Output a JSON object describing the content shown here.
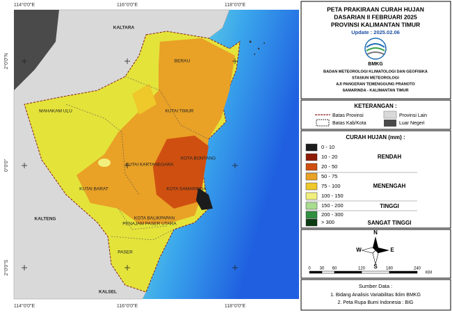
{
  "map": {
    "coordinates": {
      "top": [
        "114°0'0\"E",
        "116°0'0\"E",
        "118°0'0\"E"
      ],
      "bottom": [
        "114°0'0\"E",
        "116°0'0\"E",
        "118°0'0\"E"
      ],
      "left": [
        "2°0'0\"N",
        "0°0'0\"",
        "2°0'0\"S"
      ]
    },
    "regions": [
      "KALTARA",
      "BERAU",
      "KUTAI TIMUR",
      "MAHAKAM ULU",
      "KOTA BONTANG",
      "KUTAI KARTANEGARA",
      "KUTAI BARAT",
      "KOTA SAMARINDA",
      "KALTENG",
      "KOTA BALIKPAPAN",
      "PENAJAM PASER UTARA",
      "PASER",
      "KALSEL"
    ]
  },
  "header": {
    "title": [
      "PETA PRAKIRAAN CURAH HUJAN",
      "DASARIAN II FEBRUARI 2025",
      "PROVINSI KALIMANTAN TIMUR"
    ],
    "update": "Update : 2025.02.06",
    "logo": "BMKG",
    "agency": [
      "BADAN METEOROLOGI KLIMATOLOGI DAN GEOFISIKA",
      "STASIUN METEOROLOGI",
      "AJI PANGERAN TEMENGGUNG PRANOTO",
      "SAMARINDA - KALIMANTAN TIMUR"
    ]
  },
  "keterangan": {
    "title": "KETERANGAN :",
    "items": [
      "Batas Provinsi",
      "Provinsi Lain",
      "Batas Kab/Kota",
      "Luar Negeri"
    ]
  },
  "curah_hujan": {
    "title": "CURAH HUJAN (mm) :",
    "classes": [
      {
        "label": "0 - 10",
        "color": "#1c1c1c"
      },
      {
        "label": "10 - 20",
        "color": "#8e1b06"
      },
      {
        "label": "20 - 50",
        "color": "#cf4f10"
      },
      {
        "label": "50 - 75",
        "color": "#e9a126"
      },
      {
        "label": "75 - 100",
        "color": "#efc82a"
      },
      {
        "label": "100 - 150",
        "color": "#f1f07e"
      },
      {
        "label": "150 - 200",
        "color": "#a9dd8f"
      },
      {
        "label": "200 - 300",
        "color": "#2f9140"
      },
      {
        "label": "> 300",
        "color": "#0b3b12"
      }
    ],
    "groups": [
      "RENDAH",
      "MENENGAH",
      "TINGGI",
      "SANGAT TINGGI"
    ]
  },
  "compass": [
    "N",
    "W",
    "E",
    "S"
  ],
  "scale": {
    "labels": [
      "0",
      "30",
      "60",
      "120",
      "180",
      "240"
    ],
    "unit": "KM"
  },
  "sources": {
    "title": "Sumber Data :",
    "items": [
      "1. Bidang Analisis Variabilitas Iklim BMKG",
      "2. Peta Rupa Bumi Indonesia : BIG"
    ]
  }
}
